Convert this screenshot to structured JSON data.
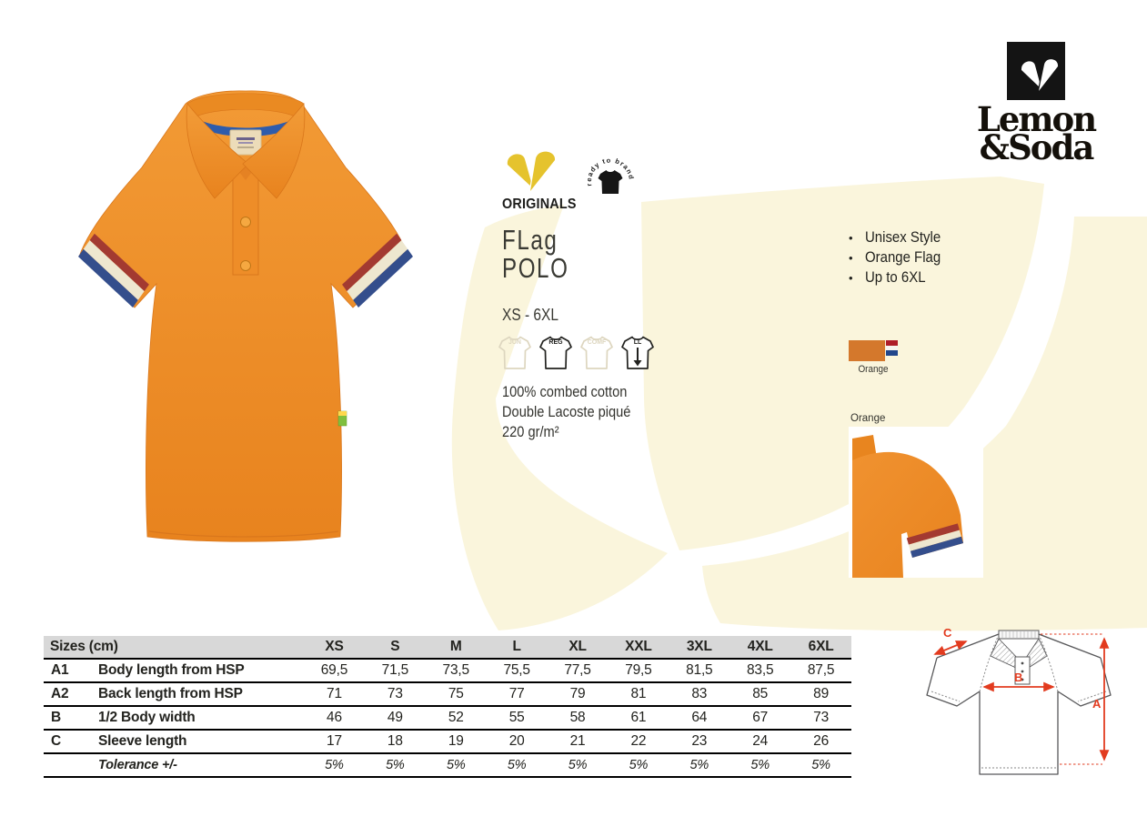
{
  "brand": {
    "logo_line1": "Lemon",
    "logo_line2": "&Soda",
    "collection_label": "ORIGINALS",
    "stamp_text": "ready to brand"
  },
  "product": {
    "title_line1": "FLag",
    "title_line2": "POLO",
    "size_range": "XS - 6XL",
    "material_lines": [
      "100% combed cotton",
      "Double Lacoste piqué",
      "220 gr/m²"
    ]
  },
  "features": [
    "Unisex Style",
    "Orange Flag",
    "Up to 6XL"
  ],
  "fits": [
    {
      "label": "JUN",
      "active": false
    },
    {
      "label": "REG",
      "active": true
    },
    {
      "label": "COMF",
      "active": false
    },
    {
      "label": "LL",
      "active": true
    }
  ],
  "colorway": {
    "name": "Orange",
    "swatch_hex": "#d4782c",
    "flag_colors": [
      "#ae1c28",
      "#ffffff",
      "#21468b"
    ]
  },
  "detail_photo_label": "Orange",
  "accents": {
    "brand_yellow": "#e5c32d",
    "watermark_yellow": "#faf5dc",
    "garment_orange": "#ee8d28",
    "measure_red": "#e23b1f",
    "table_header_gray": "#d8d8d8"
  },
  "size_table": {
    "header_label": "Sizes (cm)",
    "columns": [
      "XS",
      "S",
      "M",
      "L",
      "XL",
      "XXL",
      "3XL",
      "4XL",
      "6XL"
    ],
    "rows": [
      {
        "code": "A1",
        "label": "Body length from HSP",
        "values": [
          "69,5",
          "71,5",
          "73,5",
          "75,5",
          "77,5",
          "79,5",
          "81,5",
          "83,5",
          "87,5"
        ],
        "italic": false
      },
      {
        "code": "A2",
        "label": "Back length from HSP",
        "values": [
          "71",
          "73",
          "75",
          "77",
          "79",
          "81",
          "83",
          "85",
          "89"
        ],
        "italic": false
      },
      {
        "code": "B",
        "label": "1/2 Body width",
        "values": [
          "46",
          "49",
          "52",
          "55",
          "58",
          "61",
          "64",
          "67",
          "73"
        ],
        "italic": false
      },
      {
        "code": "C",
        "label": "Sleeve length",
        "values": [
          "17",
          "18",
          "19",
          "20",
          "21",
          "22",
          "23",
          "24",
          "26"
        ],
        "italic": false
      },
      {
        "code": "",
        "label": "Tolerance +/-",
        "values": [
          "5%",
          "5%",
          "5%",
          "5%",
          "5%",
          "5%",
          "5%",
          "5%",
          "5%"
        ],
        "italic": true
      }
    ]
  },
  "tech_drawing": {
    "label_a": "A",
    "label_b": "B",
    "label_c": "C"
  }
}
